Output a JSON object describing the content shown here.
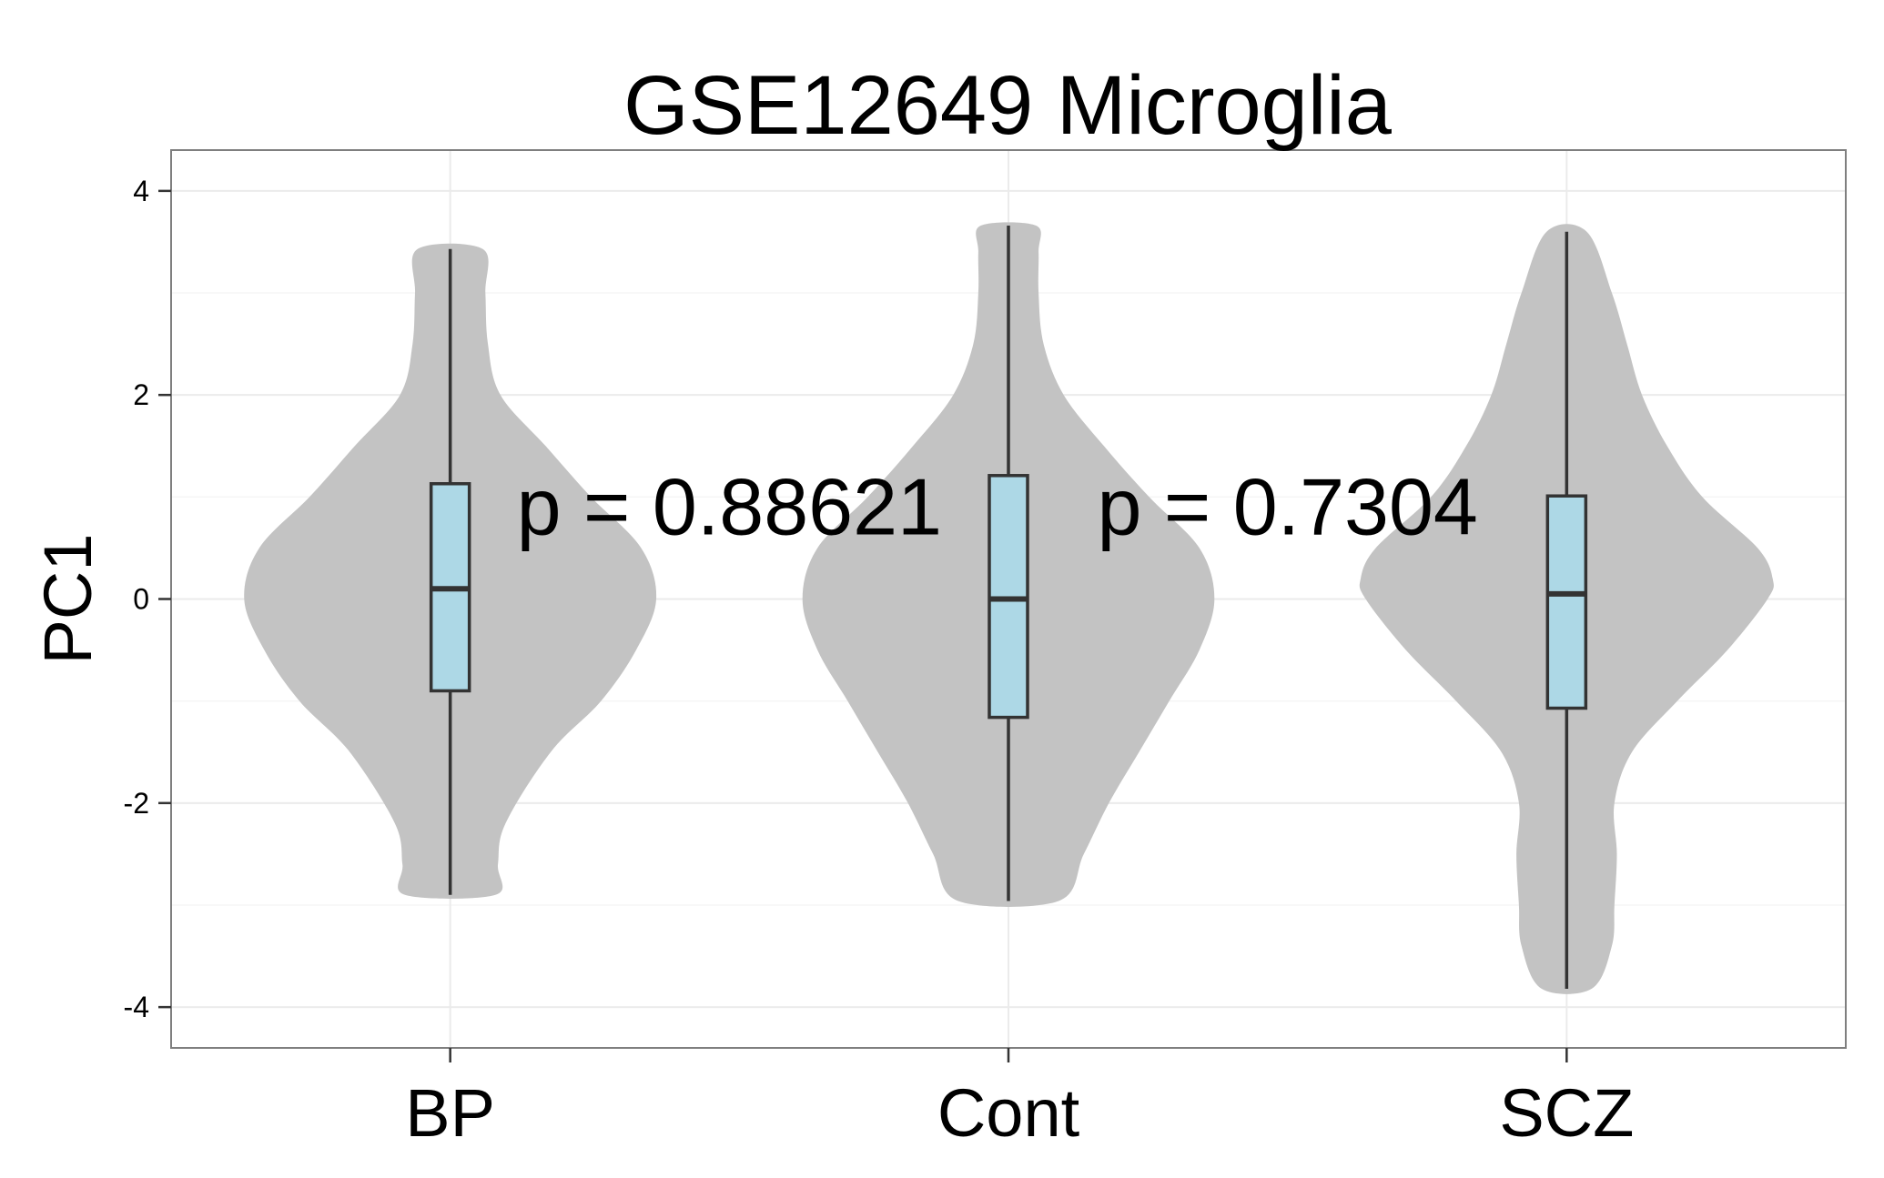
{
  "chart_data": {
    "type": "violin",
    "title": "GSE12649 Microglia",
    "xlabel": "",
    "ylabel": "PC1",
    "ylim": [
      -4.4,
      4.4
    ],
    "yticks": [
      -4,
      -2,
      0,
      2,
      4
    ],
    "ytick_labels": [
      "-4",
      "-2",
      "0",
      "2",
      "4"
    ],
    "grid": true,
    "categories": [
      "BP",
      "Cont",
      "SCZ"
    ],
    "violin_fill": "#c3c3c3",
    "box_fill": "#add8e6",
    "box_stroke": "#333333",
    "groups": [
      {
        "name": "BP",
        "min": -2.9,
        "q1": -0.9,
        "median": 0.1,
        "q3": 1.13,
        "max": 3.43,
        "violin_halfwidth": [
          [
            -2.9,
            0.09
          ],
          [
            -2.6,
            0.095
          ],
          [
            -2.2,
            0.11
          ],
          [
            -1.5,
            0.2
          ],
          [
            -1.0,
            0.3
          ],
          [
            -0.5,
            0.37
          ],
          [
            0.0,
            0.41
          ],
          [
            0.5,
            0.38
          ],
          [
            1.0,
            0.28
          ],
          [
            1.5,
            0.19
          ],
          [
            2.0,
            0.1
          ],
          [
            2.5,
            0.075
          ],
          [
            3.0,
            0.07
          ],
          [
            3.43,
            0.065
          ]
        ]
      },
      {
        "name": "Cont",
        "min": -2.96,
        "q1": -1.16,
        "median": 0.0,
        "q3": 1.21,
        "max": 3.66,
        "violin_halfwidth": [
          [
            -2.96,
            0.1
          ],
          [
            -2.5,
            0.15
          ],
          [
            -2.0,
            0.2
          ],
          [
            -1.5,
            0.26
          ],
          [
            -1.0,
            0.32
          ],
          [
            -0.5,
            0.38
          ],
          [
            0.0,
            0.41
          ],
          [
            0.5,
            0.38
          ],
          [
            1.0,
            0.28
          ],
          [
            1.5,
            0.19
          ],
          [
            2.0,
            0.11
          ],
          [
            2.5,
            0.07
          ],
          [
            3.0,
            0.06
          ],
          [
            3.4,
            0.06
          ],
          [
            3.66,
            0.055
          ]
        ]
      },
      {
        "name": "SCZ",
        "min": -3.82,
        "q1": -1.07,
        "median": 0.05,
        "q3": 1.01,
        "max": 3.6,
        "violin_halfwidth": [
          [
            -3.82,
            0.05
          ],
          [
            -3.4,
            0.09
          ],
          [
            -3.0,
            0.095
          ],
          [
            -2.5,
            0.1
          ],
          [
            -2.0,
            0.095
          ],
          [
            -1.5,
            0.13
          ],
          [
            -1.0,
            0.22
          ],
          [
            -0.5,
            0.32
          ],
          [
            0.0,
            0.4
          ],
          [
            0.2,
            0.41
          ],
          [
            0.5,
            0.38
          ],
          [
            1.0,
            0.27
          ],
          [
            1.5,
            0.2
          ],
          [
            2.0,
            0.15
          ],
          [
            2.5,
            0.12
          ],
          [
            3.0,
            0.09
          ],
          [
            3.6,
            0.04
          ]
        ]
      }
    ],
    "annotations": [
      {
        "text": "p = 0.88621",
        "x": 1.5,
        "y": 0.9
      },
      {
        "text": "p = 0.7304",
        "x": 2.5,
        "y": 0.9
      }
    ]
  }
}
